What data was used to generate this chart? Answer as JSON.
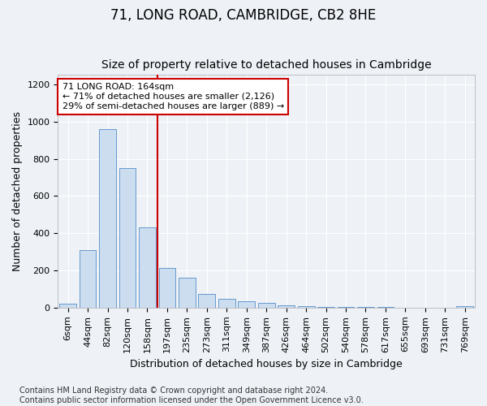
{
  "title": "71, LONG ROAD, CAMBRIDGE, CB2 8HE",
  "subtitle": "Size of property relative to detached houses in Cambridge",
  "xlabel": "Distribution of detached houses by size in Cambridge",
  "ylabel": "Number of detached properties",
  "bar_labels": [
    "6sqm",
    "44sqm",
    "82sqm",
    "120sqm",
    "158sqm",
    "197sqm",
    "235sqm",
    "273sqm",
    "311sqm",
    "349sqm",
    "387sqm",
    "426sqm",
    "464sqm",
    "502sqm",
    "540sqm",
    "578sqm",
    "617sqm",
    "655sqm",
    "693sqm",
    "731sqm",
    "769sqm"
  ],
  "bar_values": [
    22,
    308,
    960,
    748,
    433,
    212,
    163,
    73,
    47,
    35,
    28,
    15,
    8,
    5,
    3,
    3,
    2,
    1,
    1,
    1,
    10
  ],
  "bar_color": "#ccddf0",
  "bar_edge_color": "#6699cc",
  "ylim": [
    0,
    1250
  ],
  "yticks": [
    0,
    200,
    400,
    600,
    800,
    1000,
    1200
  ],
  "marker_bin_index": 4,
  "marker_color": "#cc0000",
  "annotation_line1": "71 LONG ROAD: 164sqm",
  "annotation_line2": "← 71% of detached houses are smaller (2,126)",
  "annotation_line3": "29% of semi-detached houses are larger (889) →",
  "annotation_box_color": "#ffffff",
  "annotation_box_edge": "#cc0000",
  "footer_text": "Contains HM Land Registry data © Crown copyright and database right 2024.\nContains public sector information licensed under the Open Government Licence v3.0.",
  "background_color": "#eef2f7",
  "grid_color": "#ffffff",
  "title_fontsize": 12,
  "subtitle_fontsize": 10,
  "axis_label_fontsize": 9,
  "tick_fontsize": 8,
  "footer_fontsize": 7
}
